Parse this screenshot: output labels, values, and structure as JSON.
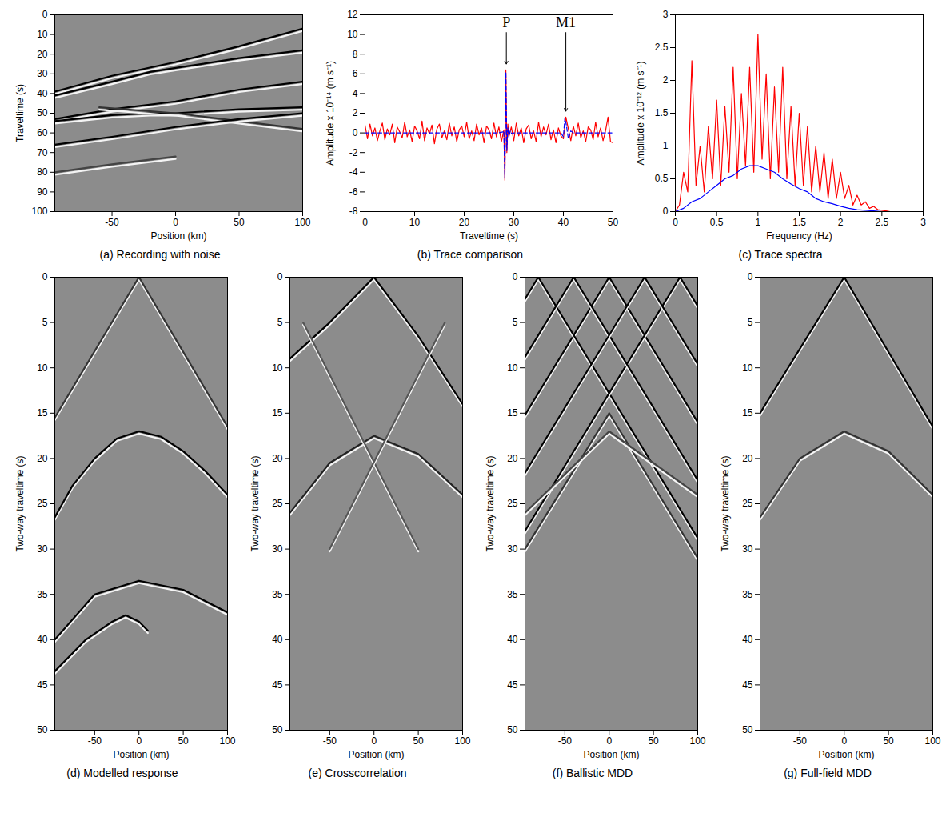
{
  "chart_data": [
    {
      "type": "section",
      "caption": "(a) Recording with noise",
      "x_label": "Position (km)",
      "y_label": "Traveltime (s)",
      "xlim": [
        -95,
        100
      ],
      "xticks": [
        -50,
        0,
        50,
        100
      ],
      "ylim": [
        0,
        100
      ],
      "yticks": [
        0,
        10,
        20,
        30,
        40,
        50,
        60,
        70,
        80,
        90,
        100
      ],
      "series": [
        {
          "color": "#000000",
          "x": [
            -95,
            -50,
            0,
            50,
            100
          ],
          "values": [
            39,
            31,
            24,
            16,
            7
          ]
        },
        {
          "color": "#000000",
          "x": [
            -95,
            -50,
            -20,
            0,
            50,
            100
          ],
          "values": [
            41,
            34,
            29,
            27,
            22,
            18
          ]
        },
        {
          "color": "#000000",
          "x": [
            -95,
            -50,
            0,
            50,
            100
          ],
          "values": [
            53,
            48,
            44,
            38,
            34
          ]
        },
        {
          "color": "#000000",
          "x": [
            -95,
            -50,
            -20,
            0,
            50,
            100
          ],
          "values": [
            54,
            51,
            50,
            50,
            48,
            47
          ]
        },
        {
          "color": "#333333",
          "x": [
            -60,
            0,
            50,
            100
          ],
          "values": [
            47,
            50,
            54,
            58
          ]
        },
        {
          "color": "#000000",
          "x": [
            -95,
            -50,
            0,
            50,
            100
          ],
          "values": [
            66,
            62,
            57,
            53,
            50
          ]
        },
        {
          "color": "#444444",
          "x": [
            -95,
            -50,
            0
          ],
          "values": [
            80,
            76,
            72
          ]
        }
      ]
    },
    {
      "type": "line",
      "caption": "(b) Trace comparison",
      "x_label": "Traveltime (s)",
      "y_label": "Amplitude x 10⁻¹⁴ (m s⁻¹)",
      "xlim": [
        0,
        50
      ],
      "xticks": [
        0,
        10,
        20,
        30,
        40,
        50
      ],
      "ylim": [
        -8,
        12
      ],
      "yticks": [
        -8,
        -6,
        -4,
        -2,
        0,
        2,
        4,
        6,
        8,
        10,
        12
      ],
      "annotations": [
        {
          "text": "P",
          "x": 28.5,
          "y": 11.2,
          "arrow_x": 28.5,
          "arrow_y_from": 10.2,
          "arrow_y": 7
        },
        {
          "text": "M1",
          "x": 40.5,
          "y": 11.2,
          "arrow_x": 40.5,
          "arrow_y_from": 10.2,
          "arrow_y": 2.2
        }
      ],
      "series": [
        {
          "color": "#ff0000",
          "line_style": "solid",
          "x": [
            0,
            0.5,
            1,
            1.5,
            2,
            2.5,
            3,
            3.5,
            4,
            4.5,
            5,
            5.5,
            6,
            6.5,
            7,
            7.5,
            8,
            8.5,
            9,
            9.5,
            10,
            10.5,
            11,
            11.5,
            12,
            12.5,
            13,
            13.5,
            14,
            14.5,
            15,
            15.5,
            16,
            16.5,
            17,
            17.5,
            18,
            18.5,
            19,
            19.5,
            20,
            20.5,
            21,
            21.5,
            22,
            22.5,
            23,
            23.5,
            24,
            24.5,
            25,
            25.5,
            26,
            26.5,
            27,
            27.5,
            28,
            28.2,
            28.4,
            28.6,
            28.8,
            29,
            29.5,
            30,
            30.5,
            31,
            31.5,
            32,
            32.5,
            33,
            33.5,
            34,
            34.5,
            35,
            35.5,
            36,
            36.5,
            37,
            37.5,
            38,
            38.5,
            39,
            39.5,
            40,
            40.5,
            41,
            41.5,
            42,
            42.5,
            43,
            43.5,
            44,
            44.5,
            45,
            45.5,
            46,
            46.5,
            47,
            47.5,
            48,
            48.5,
            49,
            49.5,
            50
          ],
          "values": [
            0.8,
            -0.6,
            0.9,
            -0.3,
            0.5,
            -0.8,
            0.2,
            1.0,
            -0.7,
            0.4,
            -0.2,
            0.9,
            -1.0,
            0.6,
            0.1,
            -0.5,
            1.1,
            -0.4,
            0.3,
            -0.9,
            0.7,
            0.2,
            -0.6,
            1.2,
            -0.8,
            0.5,
            -0.1,
            0.8,
            -1.1,
            0.4,
            0.9,
            -0.5,
            0.2,
            -0.7,
            1.0,
            -0.3,
            0.6,
            -0.9,
            0.3,
            0.7,
            -0.4,
            1.1,
            -0.6,
            0.2,
            -0.8,
            0.9,
            -0.2,
            0.5,
            -1.0,
            0.7,
            0.3,
            -0.6,
            1.0,
            -0.4,
            0.6,
            -0.9,
            0.3,
            -4.8,
            6.4,
            -2.0,
            0.9,
            -0.4,
            0.6,
            -0.8,
            1.0,
            -0.3,
            0.5,
            -1.0,
            0.4,
            0.8,
            -0.6,
            0.2,
            -0.9,
            1.1,
            -0.4,
            0.6,
            -0.2,
            0.9,
            -0.7,
            0.3,
            -1.0,
            0.5,
            -0.3,
            -0.6,
            1.6,
            0.4,
            -0.8,
            0.7,
            -0.3,
            1.0,
            -0.5,
            0.2,
            -0.9,
            0.6,
            0.3,
            -0.7,
            1.1,
            -0.4,
            0.5,
            -0.8,
            0.2,
            1.6,
            -0.9,
            -1.0
          ]
        },
        {
          "color": "#0000ff",
          "line_style": "dashed",
          "x": [
            0,
            27,
            27.8,
            28,
            28.2,
            28.4,
            28.6,
            28.8,
            29,
            29.3,
            29.6,
            30,
            39.5,
            40,
            40.3,
            40.6,
            41,
            41.5,
            42,
            50
          ],
          "values": [
            0,
            0,
            0.1,
            0.2,
            -4.6,
            6.2,
            -1.8,
            0.5,
            -0.3,
            0.2,
            -0.1,
            0,
            0,
            -0.4,
            1.5,
            0.8,
            -0.6,
            0.2,
            0,
            0
          ]
        }
      ]
    },
    {
      "type": "line",
      "caption": "(c) Trace spectra",
      "x_label": "Frequency (Hz)",
      "y_label": "Amplitude x 10⁻¹² (m s⁻¹)",
      "xlim": [
        0,
        3
      ],
      "xticks": [
        0,
        0.5,
        1,
        1.5,
        2,
        2.5,
        3
      ],
      "ylim": [
        0,
        3
      ],
      "yticks": [
        0,
        0.5,
        1,
        1.5,
        2,
        2.5,
        3
      ],
      "series": [
        {
          "color": "#ff0000",
          "line_style": "solid",
          "x": [
            0,
            0.05,
            0.1,
            0.15,
            0.2,
            0.25,
            0.3,
            0.35,
            0.4,
            0.45,
            0.5,
            0.55,
            0.6,
            0.65,
            0.7,
            0.75,
            0.8,
            0.85,
            0.9,
            0.95,
            1,
            1.05,
            1.1,
            1.15,
            1.2,
            1.25,
            1.3,
            1.35,
            1.4,
            1.45,
            1.5,
            1.55,
            1.6,
            1.65,
            1.7,
            1.75,
            1.8,
            1.85,
            1.9,
            1.95,
            2,
            2.05,
            2.1,
            2.15,
            2.2,
            2.25,
            2.3,
            2.35,
            2.4,
            2.45,
            2.5,
            2.55,
            2.6,
            2.65,
            2.7,
            2.75,
            2.8,
            2.85,
            2.9,
            2.95,
            3
          ],
          "values": [
            0,
            0.1,
            0.6,
            0.3,
            2.3,
            0.4,
            1.0,
            0.3,
            1.3,
            0.5,
            1.7,
            0.4,
            1.6,
            0.6,
            2.2,
            0.5,
            1.8,
            0.7,
            2.2,
            0.6,
            2.7,
            0.8,
            2.1,
            0.5,
            1.9,
            0.6,
            2.2,
            0.5,
            1.6,
            0.4,
            1.5,
            0.4,
            1.3,
            0.3,
            1.0,
            0.3,
            0.9,
            0.2,
            0.8,
            0.2,
            0.6,
            0.2,
            0.4,
            0.1,
            0.25,
            0.1,
            0.15,
            0.05,
            0.08,
            0.03,
            0.02,
            0.01,
            0,
            0,
            0,
            0,
            0,
            0,
            0,
            0,
            0
          ]
        },
        {
          "color": "#0000ff",
          "line_style": "solid",
          "x": [
            0,
            0.1,
            0.2,
            0.3,
            0.4,
            0.5,
            0.6,
            0.7,
            0.8,
            0.9,
            1,
            1.1,
            1.2,
            1.3,
            1.4,
            1.5,
            1.6,
            1.7,
            1.8,
            1.9,
            2,
            2.1,
            2.2,
            2.3,
            2.4,
            2.5,
            2.6,
            2.7,
            2.8,
            2.9,
            3
          ],
          "values": [
            0,
            0.05,
            0.15,
            0.2,
            0.3,
            0.4,
            0.5,
            0.55,
            0.65,
            0.7,
            0.7,
            0.65,
            0.6,
            0.5,
            0.42,
            0.35,
            0.3,
            0.2,
            0.15,
            0.12,
            0.08,
            0.05,
            0.03,
            0.02,
            0.01,
            0,
            0,
            0,
            0,
            0,
            0
          ]
        }
      ]
    },
    {
      "type": "section",
      "caption": "(d) Modelled response",
      "x_label": "Position (km)",
      "y_label": "Two-way traveltime (s)",
      "xlim": [
        -95,
        100
      ],
      "xticks": [
        -50,
        0,
        50,
        100
      ],
      "ylim": [
        0,
        50
      ],
      "yticks": [
        0,
        5,
        10,
        15,
        20,
        25,
        30,
        35,
        40,
        45,
        50
      ],
      "series": [
        {
          "color": "#333333",
          "x": [
            -95,
            0,
            100
          ],
          "values": [
            15.5,
            0,
            16.5
          ]
        },
        {
          "color": "#000000",
          "x": [
            -95,
            -75,
            -50,
            -25,
            0,
            25,
            50,
            75,
            100
          ],
          "values": [
            26.5,
            23,
            20,
            17.8,
            17,
            17.6,
            19.2,
            21.4,
            24
          ]
        },
        {
          "color": "#000000",
          "x": [
            -95,
            -50,
            0,
            50,
            100
          ],
          "values": [
            40,
            35,
            33.5,
            34.5,
            37
          ]
        },
        {
          "color": "#000000",
          "x": [
            -95,
            -60,
            -30,
            -15,
            0,
            10
          ],
          "values": [
            43.5,
            40,
            38,
            37.3,
            38,
            39
          ]
        }
      ]
    },
    {
      "type": "section",
      "caption": "(e) Crosscorrelation",
      "x_label": "Position (km)",
      "y_label": "Two-way traveltime (s)",
      "xlim": [
        -95,
        100
      ],
      "xticks": [
        -50,
        0,
        50,
        100
      ],
      "ylim": [
        0,
        50
      ],
      "yticks": [
        0,
        5,
        10,
        15,
        20,
        25,
        30,
        35,
        40,
        45,
        50
      ],
      "series": [
        {
          "color": "#000000",
          "x": [
            -95,
            -50,
            0,
            50,
            100
          ],
          "values": [
            9,
            5,
            0,
            6.5,
            14
          ]
        },
        {
          "color": "#222222",
          "x": [
            -95,
            -50,
            0,
            50,
            100
          ],
          "values": [
            26,
            20.5,
            17.5,
            19.5,
            24
          ]
        },
        {
          "color": "#555555",
          "x": [
            -80,
            50
          ],
          "values": [
            5,
            30
          ]
        },
        {
          "color": "#555555",
          "x": [
            80,
            -50
          ],
          "values": [
            5,
            30
          ]
        }
      ]
    },
    {
      "type": "section",
      "caption": "(f) Ballistic MDD",
      "x_label": "Position (km)",
      "y_label": "Two-way traveltime (s)",
      "xlim": [
        -95,
        100
      ],
      "xticks": [
        -50,
        0,
        50,
        100
      ],
      "ylim": [
        0,
        50
      ],
      "yticks": [
        0,
        5,
        10,
        15,
        20,
        25,
        30,
        35,
        40,
        45,
        50
      ],
      "series": [
        {
          "color": "#000000",
          "x": [
            -95,
            0,
            100
          ],
          "values": [
            15.2,
            0,
            16
          ]
        },
        {
          "color": "#000000",
          "x": [
            -95,
            -80,
            100
          ],
          "values": [
            2.4,
            0,
            28.8
          ]
        },
        {
          "color": "#000000",
          "x": [
            -95,
            80,
            100
          ],
          "values": [
            28,
            0,
            3.2
          ]
        },
        {
          "color": "#000000",
          "x": [
            -95,
            -40,
            100
          ],
          "values": [
            8.8,
            0,
            22.4
          ]
        },
        {
          "color": "#000000",
          "x": [
            -95,
            40,
            100
          ],
          "values": [
            21.6,
            0,
            9.6
          ]
        },
        {
          "color": "#333333",
          "x": [
            -95,
            0,
            100
          ],
          "values": [
            30,
            15,
            31
          ]
        },
        {
          "color": "#444444",
          "x": [
            -95,
            0,
            100
          ],
          "values": [
            26,
            17,
            24
          ]
        }
      ]
    },
    {
      "type": "section",
      "caption": "(g) Full-field MDD",
      "x_label": "Position (km)",
      "y_label": "Two-way traveltime (s)",
      "xlim": [
        -95,
        100
      ],
      "xticks": [
        -50,
        0,
        50,
        100
      ],
      "ylim": [
        0,
        50
      ],
      "yticks": [
        0,
        5,
        10,
        15,
        20,
        25,
        30,
        35,
        40,
        45,
        50
      ],
      "series": [
        {
          "color": "#000000",
          "x": [
            -95,
            0,
            100
          ],
          "values": [
            15,
            0,
            16.5
          ]
        },
        {
          "color": "#333333",
          "x": [
            -95,
            -50,
            0,
            50,
            100
          ],
          "values": [
            26.5,
            20,
            17,
            19.2,
            24
          ]
        }
      ]
    }
  ]
}
